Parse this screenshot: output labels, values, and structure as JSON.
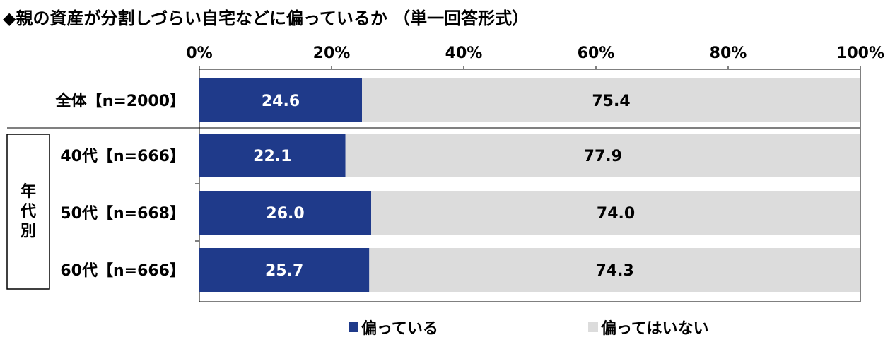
{
  "title": "◆親の資産が分割しづらい自宅などに偏っているか （単一回答形式）",
  "colors": {
    "primary": "#1f3a8a",
    "secondary": "#dcdcdc"
  },
  "chart_data": {
    "type": "bar",
    "orientation": "horizontal",
    "stacked": true,
    "x_ticks": [
      "0%",
      "20%",
      "40%",
      "60%",
      "80%",
      "100%"
    ],
    "xlim": [
      0,
      100
    ],
    "categories": [
      "全体【n=2000】",
      "40代【n=666】",
      "50代【n=668】",
      "60代【n=666】"
    ],
    "group_label": "年代別",
    "series": [
      {
        "name": "偏っている",
        "values": [
          24.6,
          22.1,
          26.0,
          25.7
        ],
        "labels": [
          "24.6",
          "22.1",
          "26.0",
          "25.7"
        ]
      },
      {
        "name": "偏ってはいない",
        "values": [
          75.4,
          77.9,
          74.0,
          74.3
        ],
        "labels": [
          "75.4",
          "77.9",
          "74.0",
          "74.3"
        ]
      }
    ],
    "legend_position": "bottom"
  }
}
